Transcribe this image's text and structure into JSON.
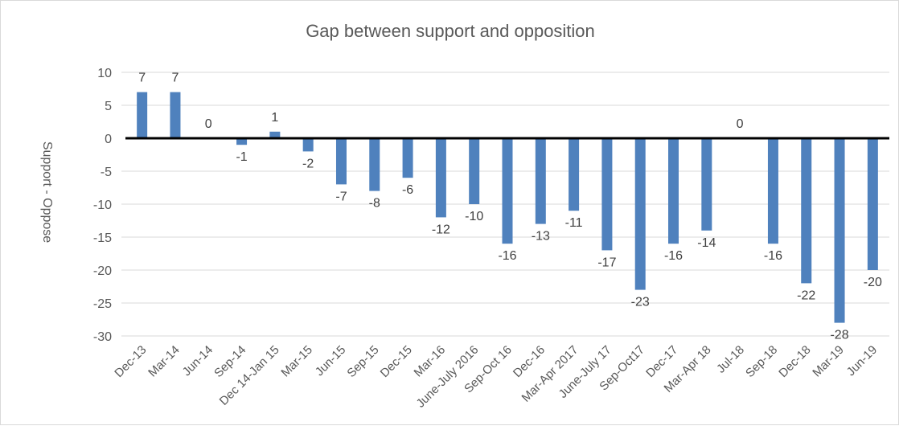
{
  "chart_data": {
    "type": "bar",
    "title": "Gap between support and opposition",
    "xlabel": "",
    "ylabel": "Support - Oppose",
    "ylim": [
      -30,
      10
    ],
    "yticks": [
      10,
      5,
      0,
      -5,
      -10,
      -15,
      -20,
      -25,
      -30
    ],
    "grid": true,
    "bar_color": "#4f81bd",
    "categories": [
      "Dec-13",
      "Mar-14",
      "Jun-14",
      "Sep-14",
      "Dec 14-Jan 15",
      "Mar-15",
      "Jun-15",
      "Sep-15",
      "Dec-15",
      "Mar-16",
      "June-July 2016",
      "Sep-Oct 16",
      "Dec-16",
      "Mar-Apr 2017",
      "June-July 17",
      "Sep-Oct17",
      "Dec-17",
      "Mar-Apr 18",
      "Jul-18",
      "Sep-18",
      "Dec-18",
      "Mar-19",
      "Jun-19"
    ],
    "values": [
      7,
      7,
      0,
      -1,
      1,
      -2,
      -7,
      -8,
      -6,
      -12,
      -10,
      -16,
      -13,
      -11,
      -17,
      -23,
      -16,
      -14,
      0,
      -16,
      -22,
      -28,
      -20
    ]
  }
}
